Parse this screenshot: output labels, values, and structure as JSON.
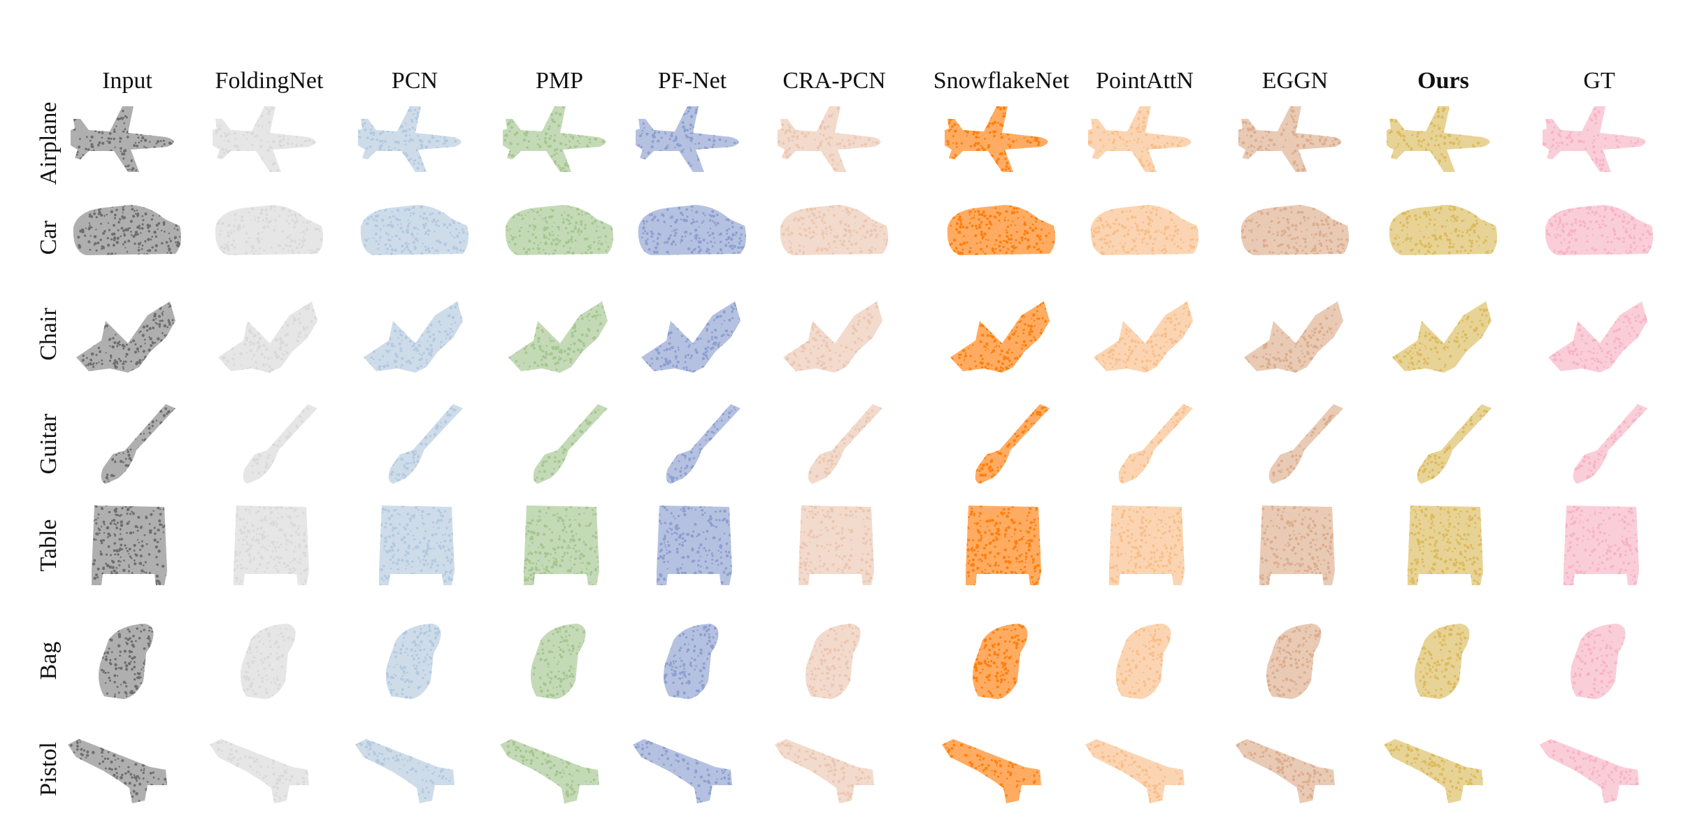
{
  "figure": {
    "columns": [
      {
        "label": "Input",
        "bold": false
      },
      {
        "label": "FoldingNet",
        "bold": false
      },
      {
        "label": "PCN",
        "bold": false
      },
      {
        "label": "PMP",
        "bold": false
      },
      {
        "label": "PF-Net",
        "bold": false
      },
      {
        "label": "CRA-PCN",
        "bold": false
      },
      {
        "label": "SnowflakeNet",
        "bold": false
      },
      {
        "label": "PointAttN",
        "bold": false
      },
      {
        "label": "EGGN",
        "bold": false
      },
      {
        "label": "Ours",
        "bold": true
      },
      {
        "label": "GT",
        "bold": false
      }
    ],
    "rows": [
      {
        "label": "Airplane",
        "shape": "airplane"
      },
      {
        "label": "Car",
        "shape": "car"
      },
      {
        "label": "Chair",
        "shape": "chair"
      },
      {
        "label": "Guitar",
        "shape": "guitar"
      },
      {
        "label": "Table",
        "shape": "table"
      },
      {
        "label": "Bag",
        "shape": "bag"
      },
      {
        "label": "Pistol",
        "shape": "pistol"
      }
    ],
    "method_colors": [
      "#6e6e6e",
      "#d9d9d9",
      "#b3c9df",
      "#a5c690",
      "#8d9fcf",
      "#ebc6b0",
      "#ff7f0e",
      "#f9bf8a",
      "#ddad8e",
      "#dcbb5e",
      "#f7b4c4"
    ]
  }
}
